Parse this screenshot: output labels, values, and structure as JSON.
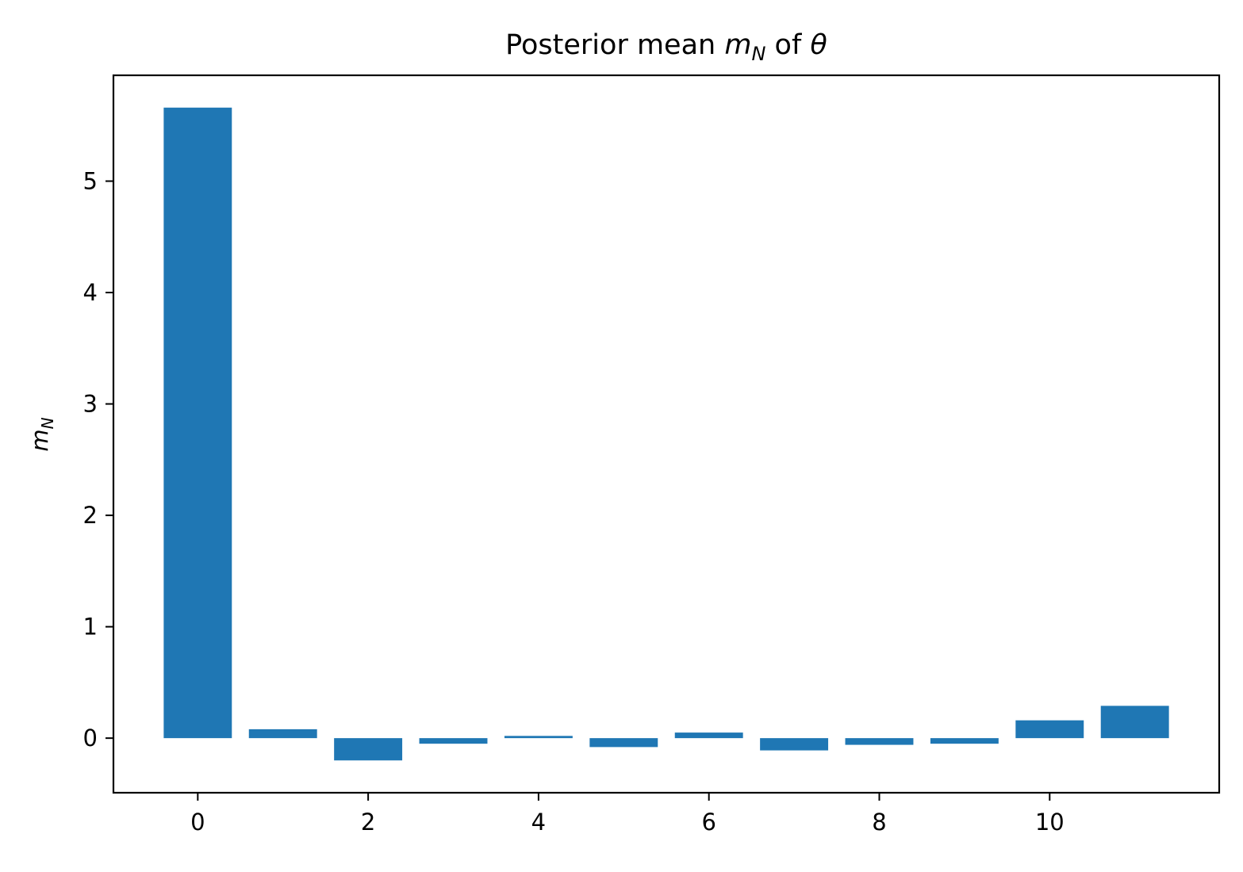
{
  "chart_data": {
    "type": "bar",
    "title": {
      "prefix": "Posterior mean ",
      "var": "m",
      "var_sub": "N",
      "middle": " of ",
      "theta": "θ"
    },
    "xlabel": "",
    "ylabel": {
      "var": "m",
      "var_sub": "N"
    },
    "x": [
      0,
      1,
      2,
      3,
      4,
      5,
      6,
      7,
      8,
      9,
      10,
      11
    ],
    "values": [
      5.66,
      0.08,
      -0.2,
      -0.05,
      0.02,
      -0.08,
      0.05,
      -0.11,
      -0.06,
      -0.05,
      0.16,
      0.29
    ],
    "bar_width": 0.8,
    "xlim": [
      -0.99,
      11.99
    ],
    "ylim": [
      -0.49,
      5.95
    ],
    "xticks": [
      0,
      2,
      4,
      6,
      8,
      10
    ],
    "yticks": [
      0,
      1,
      2,
      3,
      4,
      5
    ],
    "bar_color": "#1f77b4",
    "grid": false,
    "legend": "none"
  }
}
